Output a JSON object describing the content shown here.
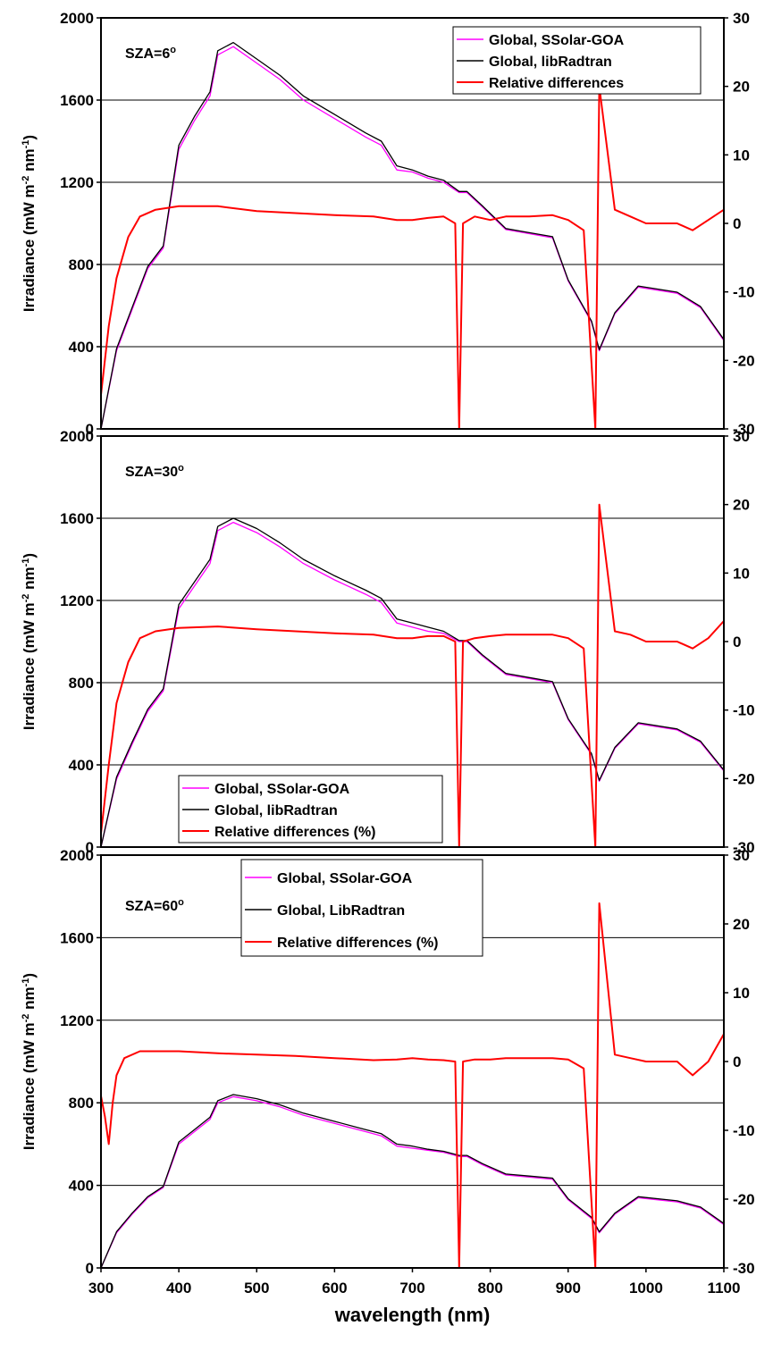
{
  "chart_data": [
    {
      "type": "line",
      "annotation": {
        "text": "SZA=6",
        "sup": "o"
      },
      "ylabel": {
        "main": "Irradiance (mW m",
        "sup1": "-2",
        "mid": " nm",
        "sup2": "-1",
        "end": ")"
      },
      "xlabel": "",
      "xlim": [
        300,
        1100
      ],
      "ylim": [
        0,
        2000
      ],
      "y2lim": [
        -30,
        30
      ],
      "xticks": [],
      "yticks": [
        "0",
        "400",
        "800",
        "1200",
        "1600",
        "2000"
      ],
      "y2ticks": [
        "-30",
        "-20",
        "-10",
        "0",
        "10",
        "20",
        "30"
      ],
      "grid": "horizontal",
      "legend": {
        "placement": "top-right",
        "entries": [
          "Global, SSolar-GOA",
          "Global, libRadtran",
          "Relative differences"
        ]
      },
      "series": [
        {
          "name": "Global, SSolar-GOA",
          "axis": "left",
          "color": "#ff00ff",
          "x": [
            300,
            320,
            340,
            360,
            380,
            400,
            420,
            440,
            450,
            470,
            500,
            530,
            560,
            600,
            640,
            660,
            680,
            700,
            720,
            740,
            760,
            770,
            790,
            820,
            850,
            880,
            900,
            930,
            940,
            960,
            990,
            1040,
            1070,
            1100
          ],
          "y": [
            0,
            380,
            580,
            780,
            880,
            1360,
            1500,
            1620,
            1820,
            1860,
            1780,
            1700,
            1600,
            1510,
            1420,
            1380,
            1260,
            1250,
            1220,
            1200,
            1150,
            1150,
            1080,
            970,
            950,
            930,
            720,
            520,
            380,
            560,
            690,
            660,
            590,
            430
          ]
        },
        {
          "name": "Global, libRadtran",
          "axis": "left",
          "color": "#000000",
          "x": [
            300,
            320,
            340,
            360,
            380,
            400,
            420,
            440,
            450,
            470,
            500,
            530,
            560,
            600,
            640,
            660,
            680,
            700,
            720,
            740,
            760,
            770,
            790,
            820,
            850,
            880,
            900,
            930,
            940,
            960,
            990,
            1040,
            1070,
            1100
          ],
          "y": [
            0,
            390,
            590,
            790,
            890,
            1380,
            1520,
            1640,
            1840,
            1880,
            1800,
            1720,
            1620,
            1530,
            1440,
            1400,
            1280,
            1260,
            1230,
            1210,
            1155,
            1155,
            1085,
            975,
            955,
            935,
            725,
            525,
            385,
            565,
            695,
            665,
            595,
            435
          ]
        },
        {
          "name": "Relative differences",
          "axis": "right",
          "color": "#ff0000",
          "x": [
            300,
            310,
            320,
            335,
            350,
            370,
            400,
            450,
            500,
            550,
            600,
            650,
            680,
            700,
            720,
            740,
            755,
            760,
            765,
            780,
            800,
            820,
            850,
            880,
            900,
            920,
            935,
            940,
            960,
            980,
            1000,
            1040,
            1060,
            1080,
            1100
          ],
          "y": [
            -25,
            -15,
            -8,
            -2,
            1,
            2,
            2.5,
            2.5,
            1.8,
            1.5,
            1.2,
            1,
            0.5,
            0.5,
            0.8,
            1,
            0,
            -30,
            0,
            1,
            0.5,
            1,
            1,
            1.2,
            0.5,
            -1,
            -30,
            20,
            2,
            1,
            0,
            0,
            -1,
            0.5,
            2
          ]
        }
      ]
    },
    {
      "type": "line",
      "annotation": {
        "text": "SZA=30",
        "sup": "o"
      },
      "ylabel": {
        "main": "Irradiance (mW m",
        "sup1": "-2",
        "mid": " nm",
        "sup2": "-1",
        "end": ")"
      },
      "xlabel": "",
      "xlim": [
        300,
        1100
      ],
      "ylim": [
        0,
        2000
      ],
      "y2lim": [
        -30,
        30
      ],
      "xticks": [],
      "yticks": [
        "0",
        "400",
        "800",
        "1200",
        "1600",
        "2000"
      ],
      "y2ticks": [
        "-30",
        "-20",
        "-10",
        "0",
        "10",
        "20",
        "30"
      ],
      "grid": "horizontal",
      "legend": {
        "placement": "bottom-left",
        "entries": [
          "Global, SSolar-GOA",
          "Global, libRadtran",
          "Relative differences (%)"
        ]
      },
      "series": [
        {
          "name": "Global, SSolar-GOA",
          "axis": "left",
          "color": "#ff00ff",
          "x": [
            300,
            320,
            340,
            360,
            380,
            400,
            420,
            440,
            450,
            470,
            500,
            530,
            560,
            600,
            640,
            660,
            680,
            700,
            720,
            740,
            760,
            770,
            790,
            820,
            850,
            880,
            900,
            930,
            940,
            960,
            990,
            1040,
            1070,
            1100
          ],
          "y": [
            0,
            330,
            500,
            660,
            760,
            1160,
            1270,
            1380,
            1540,
            1580,
            1530,
            1460,
            1380,
            1300,
            1230,
            1190,
            1090,
            1070,
            1050,
            1040,
            1000,
            1000,
            930,
            840,
            820,
            800,
            620,
            450,
            320,
            480,
            600,
            570,
            510,
            370
          ]
        },
        {
          "name": "Global, libRadtran",
          "axis": "left",
          "color": "#000000",
          "x": [
            300,
            320,
            340,
            360,
            380,
            400,
            420,
            440,
            450,
            470,
            500,
            530,
            560,
            600,
            640,
            660,
            680,
            700,
            720,
            740,
            760,
            770,
            790,
            820,
            850,
            880,
            900,
            930,
            940,
            960,
            990,
            1040,
            1070,
            1100
          ],
          "y": [
            0,
            340,
            510,
            670,
            770,
            1180,
            1290,
            1400,
            1560,
            1600,
            1550,
            1480,
            1400,
            1320,
            1250,
            1210,
            1110,
            1090,
            1070,
            1050,
            1005,
            1005,
            935,
            845,
            825,
            805,
            625,
            455,
            325,
            485,
            605,
            575,
            515,
            375
          ]
        },
        {
          "name": "Relative differences (%)",
          "axis": "right",
          "color": "#ff0000",
          "x": [
            300,
            310,
            320,
            335,
            350,
            370,
            400,
            450,
            500,
            550,
            600,
            650,
            680,
            700,
            720,
            740,
            755,
            760,
            765,
            780,
            800,
            820,
            850,
            880,
            900,
            920,
            935,
            940,
            960,
            980,
            1000,
            1040,
            1060,
            1080,
            1100
          ],
          "y": [
            -28,
            -18,
            -9,
            -3,
            0.5,
            1.5,
            2,
            2.2,
            1.8,
            1.5,
            1.2,
            1,
            0.5,
            0.5,
            0.8,
            0.8,
            0,
            -30,
            0,
            0.5,
            0.8,
            1,
            1,
            1,
            0.5,
            -1,
            -30,
            20,
            1.5,
            1,
            0,
            0,
            -1,
            0.5,
            3
          ]
        }
      ]
    },
    {
      "type": "line",
      "annotation": {
        "text": "SZA=60",
        "sup": "o"
      },
      "ylabel": {
        "main": "Irradiance (mW m",
        "sup1": "-2",
        "mid": " nm",
        "sup2": "-1",
        "end": ")"
      },
      "xlabel": "wavelength (nm)",
      "xlim": [
        300,
        1100
      ],
      "ylim": [
        0,
        2000
      ],
      "y2lim": [
        -30,
        30
      ],
      "xticks": [
        "300",
        "400",
        "500",
        "600",
        "700",
        "800",
        "900",
        "1000",
        "1100"
      ],
      "yticks": [
        "0",
        "400",
        "800",
        "1200",
        "1600",
        "2000"
      ],
      "y2ticks": [
        "-30",
        "-20",
        "-10",
        "0",
        "10",
        "20",
        "30"
      ],
      "grid": "horizontal",
      "legend": {
        "placement": "top-center",
        "entries": [
          "Global, SSolar-GOA",
          "Global, LibRadtran",
          "Relative differences (%)"
        ]
      },
      "series": [
        {
          "name": "Global, SSolar-GOA",
          "axis": "left",
          "color": "#ff00ff",
          "x": [
            300,
            320,
            340,
            360,
            380,
            400,
            420,
            440,
            450,
            470,
            500,
            530,
            560,
            600,
            640,
            660,
            680,
            700,
            720,
            740,
            760,
            770,
            790,
            820,
            850,
            880,
            900,
            930,
            940,
            960,
            990,
            1040,
            1070,
            1100
          ],
          "y": [
            0,
            170,
            260,
            340,
            390,
            600,
            660,
            720,
            800,
            830,
            810,
            780,
            740,
            700,
            660,
            640,
            590,
            580,
            570,
            560,
            540,
            540,
            500,
            450,
            440,
            430,
            330,
            240,
            170,
            260,
            340,
            320,
            290,
            210
          ]
        },
        {
          "name": "Global, LibRadtran",
          "axis": "left",
          "color": "#000000",
          "x": [
            300,
            320,
            340,
            360,
            380,
            400,
            420,
            440,
            450,
            470,
            500,
            530,
            560,
            600,
            640,
            660,
            680,
            700,
            720,
            740,
            760,
            770,
            790,
            820,
            850,
            880,
            900,
            930,
            940,
            960,
            990,
            1040,
            1070,
            1100
          ],
          "y": [
            0,
            175,
            265,
            345,
            395,
            610,
            670,
            730,
            810,
            840,
            820,
            790,
            750,
            710,
            670,
            650,
            600,
            590,
            575,
            565,
            545,
            545,
            505,
            455,
            445,
            435,
            335,
            245,
            175,
            265,
            345,
            325,
            295,
            215
          ]
        },
        {
          "name": "Relative differences (%)",
          "axis": "right",
          "color": "#ff0000",
          "x": [
            300,
            305,
            310,
            315,
            320,
            330,
            350,
            400,
            450,
            500,
            550,
            600,
            650,
            680,
            700,
            720,
            740,
            755,
            760,
            765,
            780,
            800,
            820,
            850,
            880,
            900,
            920,
            935,
            940,
            960,
            980,
            1000,
            1040,
            1060,
            1080,
            1100
          ],
          "y": [
            -5,
            -8,
            -12,
            -6,
            -2,
            0.5,
            1.5,
            1.5,
            1.2,
            1,
            0.8,
            0.5,
            0.2,
            0.3,
            0.5,
            0.3,
            0.2,
            0,
            -30,
            0,
            0.3,
            0.3,
            0.5,
            0.5,
            0.5,
            0.3,
            -1,
            -30,
            23,
            1,
            0.5,
            0,
            0,
            -2,
            0,
            4
          ]
        }
      ]
    }
  ]
}
